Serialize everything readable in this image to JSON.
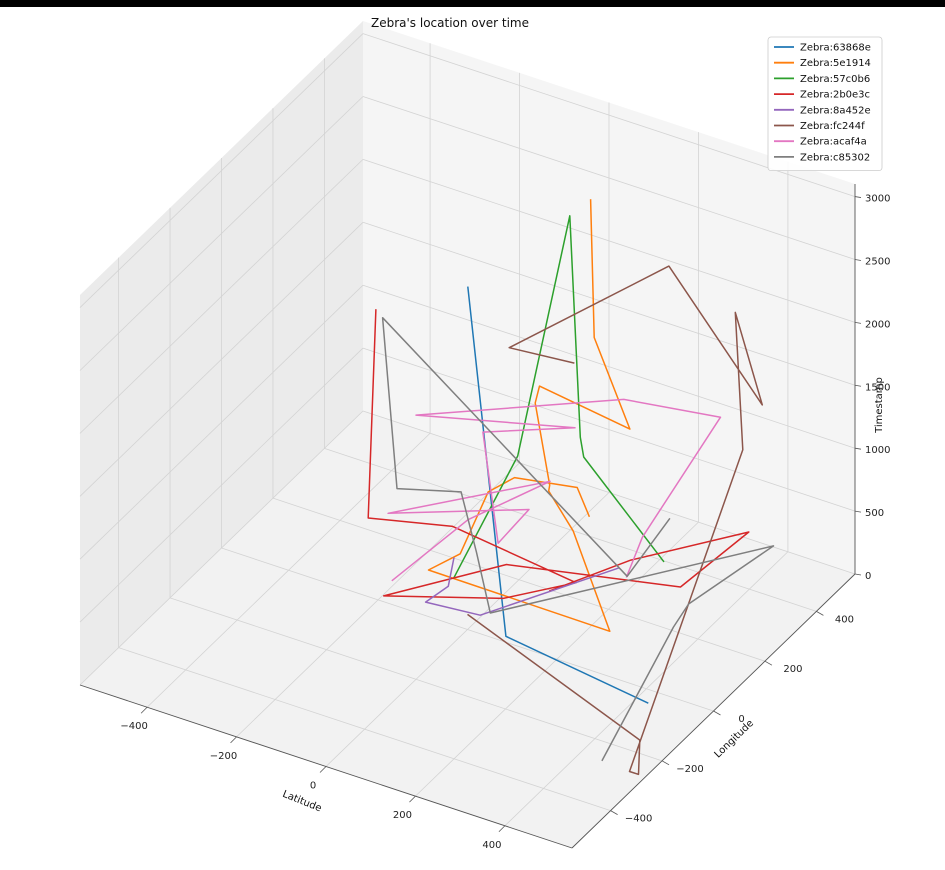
{
  "chart_data": {
    "type": "line",
    "title": "Zebra's location over time",
    "xlabel": "Latitude",
    "ylabel": "Longitude",
    "zlabel": "Timestamp",
    "xlim": [
      -550,
      550
    ],
    "ylim": [
      -550,
      550
    ],
    "zlim": [
      0,
      3100
    ],
    "x_ticks": [
      -400,
      -200,
      0,
      200,
      400
    ],
    "y_ticks": [
      -400,
      -200,
      0,
      200,
      400
    ],
    "z_ticks": [
      0,
      500,
      1000,
      1500,
      2000,
      2500,
      3000
    ],
    "grid": true,
    "legend_position": "top-right",
    "series": [
      {
        "name": "Zebra:63868e",
        "color": "#1f77b4",
        "points": [
          [
            430,
            -45,
            10
          ],
          [
            80,
            10,
            20
          ],
          [
            -5,
            10,
            2700
          ]
        ]
      },
      {
        "name": "Zebra:5e1914",
        "color": "#ff7f0e",
        "points": [
          [
            140,
            235,
            3120
          ],
          [
            148,
            235,
            2030
          ],
          [
            205,
            275,
            1290
          ],
          [
            0,
            280,
            1380
          ],
          [
            0,
            263,
            1280
          ],
          [
            40,
            250,
            700
          ],
          [
            55,
            220,
            730
          ],
          [
            190,
            80,
            850
          ],
          [
            370,
            -90,
            600
          ],
          [
            -70,
            -30,
            450
          ],
          [
            -45,
            50,
            450
          ],
          [
            -40,
            150,
            750
          ],
          [
            -10,
            200,
            800
          ],
          [
            90,
            270,
            700
          ],
          [
            100,
            300,
            420
          ]
        ]
      },
      {
        "name": "Zebra:57c0b6",
        "color": "#2ca02c",
        "points": [
          [
            -20,
            -20,
            420
          ],
          [
            -20,
            230,
            900
          ],
          [
            108,
            210,
            3000
          ],
          [
            117,
            235,
            1200
          ],
          [
            70,
            330,
            800
          ],
          [
            330,
            190,
            550
          ]
        ]
      },
      {
        "name": "Zebra:2b0e3c",
        "color": "#d62728",
        "points": [
          [
            -130,
            -130,
            2650
          ],
          [
            -130,
            -160,
            1050
          ],
          [
            10,
            -75,
            980
          ],
          [
            215,
            48,
            530
          ],
          [
            110,
            -52,
            480
          ],
          [
            -100,
            -152,
            450
          ],
          [
            70,
            30,
            540
          ],
          [
            390,
            150,
            500
          ],
          [
            370,
            450,
            320
          ],
          [
            250,
            200,
            450
          ],
          [
            200,
            -30,
            600
          ]
        ]
      },
      {
        "name": "Zebra:8a452e",
        "color": "#9467bd",
        "points": [
          [
            -10,
            -35,
            630
          ],
          [
            -20,
            -40,
            400
          ],
          [
            -65,
            -50,
            240
          ],
          [
            40,
            -20,
            200
          ],
          [
            225,
            200,
            360
          ]
        ]
      },
      {
        "name": "Zebra:fc244f",
        "color": "#8c564b",
        "points": [
          [
            0,
            0,
            120
          ],
          [
            460,
            -130,
            -80
          ],
          [
            480,
            -170,
            -250
          ],
          [
            460,
            -170,
            -250
          ],
          [
            420,
            340,
            1250
          ],
          [
            340,
            450,
            2030
          ],
          [
            360,
            520,
            1180
          ],
          [
            180,
            470,
            2170
          ],
          [
            260,
            -290,
            3120
          ],
          [
            380,
            -245,
            3050
          ]
        ]
      },
      {
        "name": "Zebra:acaf4a",
        "color": "#e377c2",
        "points": [
          [
            -80,
            -155,
            600
          ],
          [
            50,
            -85,
            1100
          ],
          [
            110,
            130,
            1050
          ],
          [
            -120,
            -100,
            980
          ],
          [
            80,
            100,
            850
          ],
          [
            80,
            -20,
            820
          ],
          [
            0,
            60,
            1450
          ],
          [
            200,
            70,
            1700
          ],
          [
            0,
            -200,
            2100
          ],
          [
            200,
            260,
            1550
          ],
          [
            370,
            340,
            1450
          ],
          [
            230,
            280,
            450
          ],
          [
            240,
            200,
            300
          ]
        ]
      },
      {
        "name": "Zebra:c85302",
        "color": "#7f7f7f",
        "points": [
          [
            450,
            -260,
            0
          ],
          [
            380,
            140,
            190
          ],
          [
            385,
            190,
            280
          ],
          [
            500,
            320,
            620
          ],
          [
            120,
            -120,
            510
          ],
          [
            20,
            0,
            640
          ],
          [
            -20,
            10,
            1050
          ],
          [
            -100,
            -100,
            1200
          ],
          [
            -115,
            -130,
            2600
          ],
          [
            380,
            -40,
            950
          ],
          [
            280,
            300,
            620
          ]
        ]
      }
    ]
  }
}
